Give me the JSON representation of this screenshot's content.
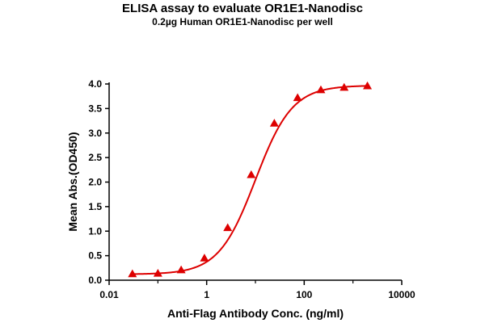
{
  "chart_data": {
    "type": "scatter",
    "title": "ELISA assay to evaluate OR1E1-Nanodisc",
    "subtitle": "0.2µg Human OR1E1-Nanodisc per well",
    "xlabel": "Anti-Flag Antibody Conc. (ng/ml)",
    "ylabel": "Mean Abs.(OD450)",
    "xscale": "log",
    "xlim": [
      0.01,
      10000
    ],
    "ylim": [
      0,
      4
    ],
    "xticks": [
      0.01,
      1,
      100,
      10000
    ],
    "xtick_labels": [
      "0.01",
      "1",
      "100",
      "10000"
    ],
    "yticks": [
      0,
      0.5,
      1,
      1.5,
      2,
      2.5,
      3,
      3.5,
      4
    ],
    "ytick_labels": [
      "0.0",
      "0.5",
      "1.0",
      "1.5",
      "2.0",
      "2.5",
      "3.0",
      "3.5",
      "4.0"
    ],
    "series": [
      {
        "marker": "triangle",
        "color": "#dd0000",
        "fit_curve": "4PL sigmoid",
        "x": [
          0.03,
          0.1,
          0.3,
          0.9,
          2.7,
          8.2,
          24.4,
          73.2,
          219.7,
          659.2,
          1977.5
        ],
        "y": [
          0.13,
          0.14,
          0.21,
          0.45,
          1.07,
          2.15,
          3.2,
          3.72,
          3.88,
          3.93,
          3.96
        ]
      }
    ],
    "fit_params": {
      "bottom": 0.12,
      "top": 3.97,
      "ec50": 10.0,
      "hill": 1.15
    },
    "grid": false,
    "legend": "none"
  }
}
